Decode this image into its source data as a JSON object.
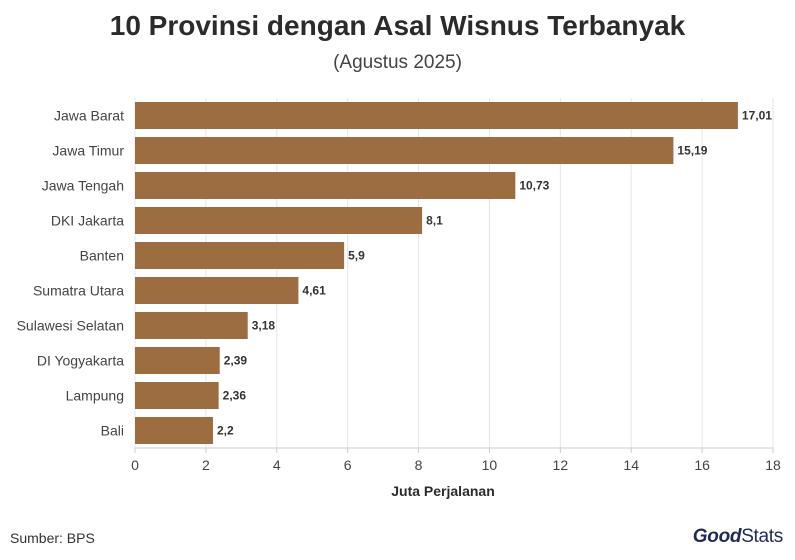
{
  "title": "10 Provinsi dengan Asal Wisnus Terbanyak",
  "subtitle": "(Agustus 2025)",
  "source": "Sumber: BPS",
  "logo": {
    "part1": "Good",
    "part2": "Stats"
  },
  "colors": {
    "bar": "#9b6d40",
    "grid": "#e6e6e6",
    "axis": "#cccccc",
    "logo": "#1f2a5a"
  },
  "chart_data": {
    "type": "bar",
    "orientation": "horizontal",
    "title": "10 Provinsi dengan Asal Wisnus Terbanyak",
    "subtitle": "(Agustus 2025)",
    "xlabel": "Juta Perjalanan",
    "ylabel": "",
    "categories": [
      "Jawa Barat",
      "Jawa Timur",
      "Jawa Tengah",
      "DKI Jakarta",
      "Banten",
      "Sumatra Utara",
      "Sulawesi Selatan",
      "DI Yogyakarta",
      "Lampung",
      "Bali"
    ],
    "values": [
      17.01,
      15.19,
      10.73,
      8.1,
      5.9,
      4.61,
      3.18,
      2.39,
      2.36,
      2.2
    ],
    "value_labels": [
      "17,01",
      "15,19",
      "10,73",
      "8,1",
      "5,9",
      "4,61",
      "3,18",
      "2,39",
      "2,36",
      "2,2"
    ],
    "xlim": [
      0,
      18
    ],
    "xticks": [
      0,
      2,
      4,
      6,
      8,
      10,
      12,
      14,
      16,
      18
    ],
    "grid": true,
    "legend": "none"
  }
}
